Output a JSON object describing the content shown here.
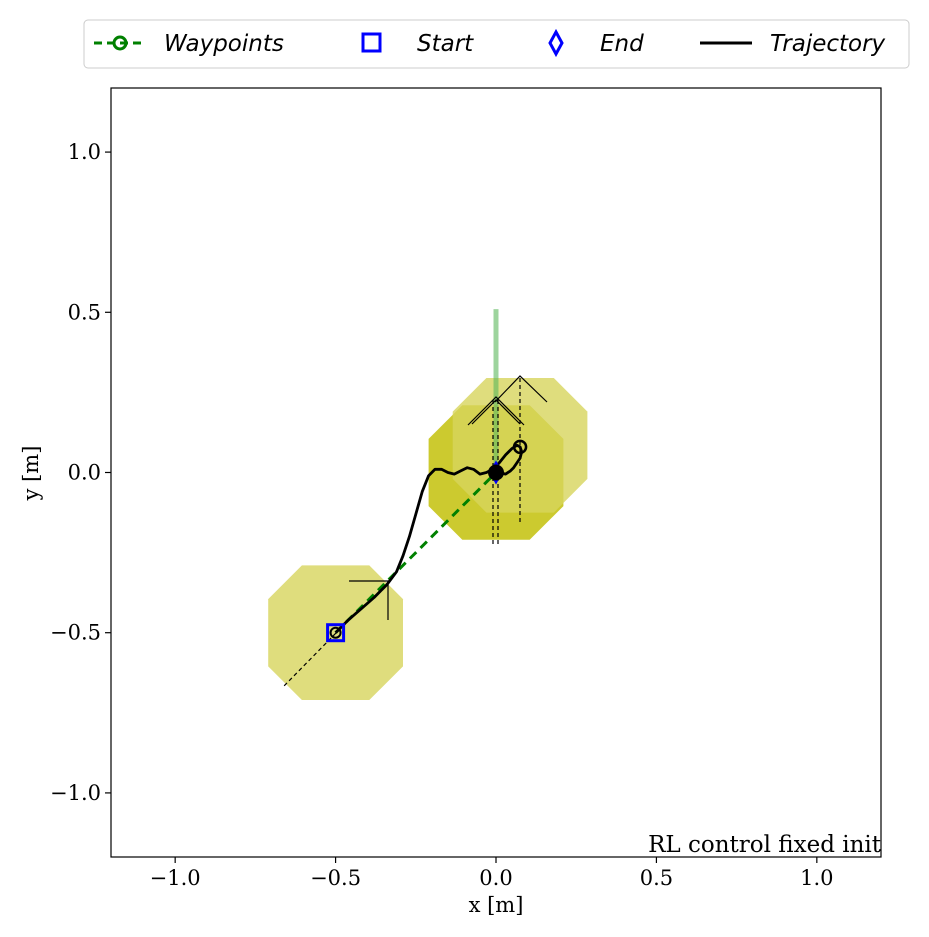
{
  "chart_data": {
    "type": "scatter",
    "xlabel": "x [m]",
    "ylabel": "y [m]",
    "xlim": [
      -1.2,
      1.2
    ],
    "ylim": [
      -1.2,
      1.2
    ],
    "x_ticks": [
      -1.0,
      -0.5,
      0.0,
      0.5,
      1.0
    ],
    "x_tick_labels": [
      "−1.0",
      "−0.5",
      "0.0",
      "0.5",
      "1.0"
    ],
    "y_ticks": [
      1.0,
      0.5,
      0.0,
      -0.5,
      -1.0
    ],
    "y_tick_labels": [
      "1.0",
      "0.5",
      "0.0",
      "−0.5",
      "−1.0"
    ],
    "grid": false,
    "legend_position": "top",
    "legend": [
      {
        "label": "Waypoints",
        "marker": "circle",
        "line": "dashed",
        "color": "#008000"
      },
      {
        "label": "Start",
        "marker": "square",
        "line": "none",
        "color": "#0000ff"
      },
      {
        "label": "End",
        "marker": "diamond",
        "line": "none",
        "color": "#0000ff"
      },
      {
        "label": "Trajectory",
        "marker": "none",
        "line": "solid",
        "color": "#000000"
      }
    ],
    "annotation": "RL control fixed init",
    "series": [
      {
        "name": "Waypoints",
        "x": [
          -0.5,
          0.0
        ],
        "y": [
          -0.5,
          0.0
        ],
        "color": "#008000"
      },
      {
        "name": "Start",
        "x": [
          -0.5
        ],
        "y": [
          -0.5
        ],
        "color": "#0000ff"
      },
      {
        "name": "End",
        "x": [
          0.0
        ],
        "y": [
          0.0
        ],
        "color": "#0000ff"
      },
      {
        "name": "Trajectory",
        "color": "#000000",
        "x": [
          -0.5,
          -0.46,
          -0.42,
          -0.38,
          -0.34,
          -0.31,
          -0.29,
          -0.27,
          -0.25,
          -0.23,
          -0.21,
          -0.19,
          -0.17,
          -0.15,
          -0.13,
          -0.11,
          -0.09,
          -0.07,
          -0.05,
          -0.03,
          -0.01,
          0.01,
          0.03,
          0.05,
          0.065,
          0.075,
          0.08,
          0.075,
          0.065,
          0.055,
          0.045,
          0.03,
          0.01,
          0.0
        ],
        "y": [
          -0.5,
          -0.46,
          -0.425,
          -0.39,
          -0.35,
          -0.31,
          -0.26,
          -0.2,
          -0.13,
          -0.06,
          -0.01,
          0.01,
          0.01,
          0.0,
          -0.005,
          0.005,
          0.015,
          0.01,
          -0.005,
          0.0,
          0.01,
          0.03,
          0.055,
          0.075,
          0.085,
          0.08,
          0.065,
          0.045,
          0.03,
          0.015,
          0.005,
          -0.005,
          0.0,
          0.0
        ]
      }
    ],
    "footprints": [
      {
        "center": [
          -0.5,
          -0.5
        ],
        "color": "#d7d55c"
      },
      {
        "center": [
          0.0,
          0.0
        ],
        "color": "#c3c10b"
      },
      {
        "center": [
          0.075,
          0.085
        ],
        "color": "#d7d55c"
      }
    ],
    "heading_line": {
      "x": [
        0.0,
        0.0
      ],
      "y": [
        0.0,
        0.51
      ],
      "color": "#5cb85c"
    }
  }
}
